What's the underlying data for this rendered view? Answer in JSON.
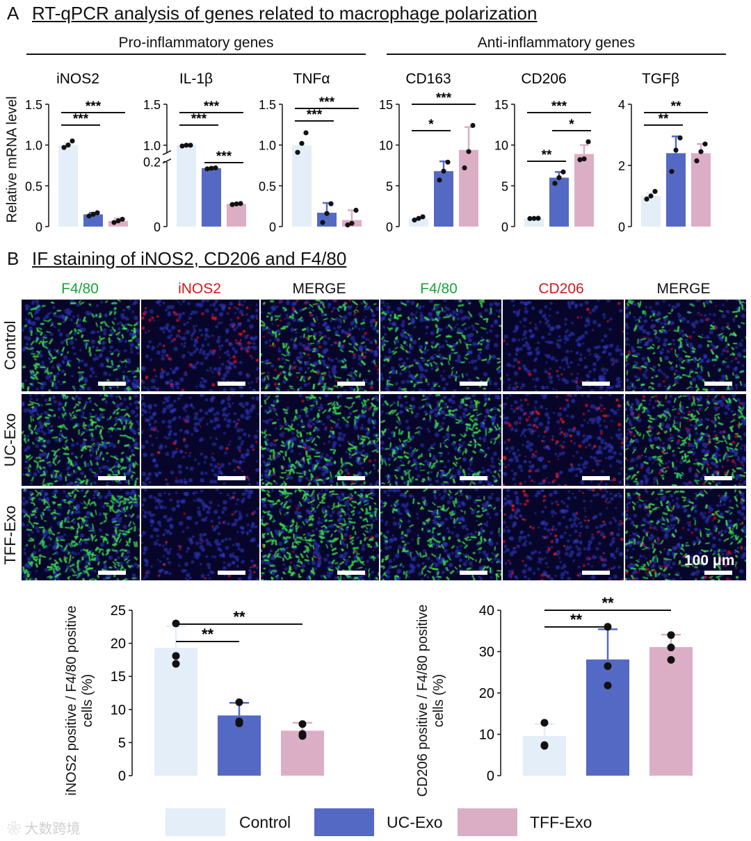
{
  "panel_a": {
    "letter": "A",
    "title": "RT-qPCR analysis of genes related to macrophage polarization",
    "group_left": "Pro-inflammatory genes",
    "group_right": "Anti-inflammatory genes",
    "ylabel": "Relative mRNA level"
  },
  "panel_b": {
    "letter": "B",
    "title": "IF staining of iNOS2, CD206 and F4/80",
    "col_labels": [
      "F4/80",
      "iNOS2",
      "MERGE",
      "F4/80",
      "CD206",
      "MERGE"
    ],
    "col_colors": [
      "#1aa33a",
      "#d01a1a",
      "#111111",
      "#1aa33a",
      "#d01a1a",
      "#111111"
    ],
    "row_labels": [
      "Control",
      "UC-Exo",
      "TFF-Exo"
    ],
    "scale_label": "100 μm"
  },
  "legend": {
    "items": [
      {
        "label": "Control",
        "color": "#e3eef9"
      },
      {
        "label": "UC-Exo",
        "color": "#5469c4"
      },
      {
        "label": "TFF-Exo",
        "color": "#dcaec6"
      }
    ]
  },
  "colors": {
    "control": "#e3eef9",
    "uc": "#5469c4",
    "tff": "#dcaec6"
  },
  "watermark": "大数跨境",
  "chart_data": [
    {
      "type": "bar",
      "title": "iNOS2",
      "categories": [
        "Control",
        "UC-Exo",
        "TFF-Exo"
      ],
      "values": [
        1.0,
        0.15,
        0.07
      ],
      "err": [
        0.03,
        0.02,
        0.03
      ],
      "points": [
        [
          0.97,
          1.0,
          1.05
        ],
        [
          0.13,
          0.15,
          0.17
        ],
        [
          0.05,
          0.07,
          0.09
        ]
      ],
      "ylim": [
        0,
        1.5
      ],
      "yticks": [
        "0",
        "0.5",
        "1.0",
        "1.5"
      ],
      "sig": [
        {
          "a": 0,
          "b": 1,
          "label": "***"
        },
        {
          "a": 0,
          "b": 2,
          "label": "***"
        }
      ]
    },
    {
      "type": "bar",
      "title": "IL-1β",
      "categories": [
        "Control",
        "UC-Exo",
        "TFF-Exo"
      ],
      "values": [
        1.0,
        0.18,
        0.07
      ],
      "points": [
        [
          0.99,
          1.0,
          1.0
        ],
        [
          0.178,
          0.18,
          0.181
        ],
        [
          0.068,
          0.07,
          0.071
        ]
      ],
      "ylim": [
        0,
        1.5
      ],
      "yticks": [
        "0",
        "0.2",
        "1.0",
        "1.5"
      ],
      "broken_axis": true,
      "sig": [
        {
          "a": 0,
          "b": 1,
          "label": "***"
        },
        {
          "a": 0,
          "b": 2,
          "label": "***"
        },
        {
          "a": 1,
          "b": 2,
          "label": "***"
        }
      ]
    },
    {
      "type": "bar",
      "title": "TNFα",
      "categories": [
        "Control",
        "UC-Exo",
        "TFF-Exo"
      ],
      "values": [
        1.0,
        0.17,
        0.08
      ],
      "err": [
        0.0,
        0.12,
        0.12
      ],
      "points": [
        [
          0.91,
          1.02,
          1.15
        ],
        [
          0.05,
          0.16,
          0.28
        ],
        [
          0.02,
          0.04,
          0.2
        ]
      ],
      "ylim": [
        0,
        1.5
      ],
      "yticks": [
        "0",
        "0.5",
        "1.0",
        "1.5"
      ],
      "sig": [
        {
          "a": 0,
          "b": 1,
          "label": "***"
        },
        {
          "a": 0,
          "b": 2,
          "label": "***"
        }
      ]
    },
    {
      "type": "bar",
      "title": "CD163",
      "categories": [
        "Control",
        "UC-Exo",
        "TFF-Exo"
      ],
      "values": [
        1.0,
        6.8,
        9.4
      ],
      "err": [
        0.1,
        1.2,
        2.8
      ],
      "points": [
        [
          0.8,
          1.0,
          1.2
        ],
        [
          5.7,
          6.8,
          7.9
        ],
        [
          7.2,
          9.2,
          12.4
        ]
      ],
      "ylim": [
        0,
        15
      ],
      "yticks": [
        "0",
        "5",
        "10",
        "15"
      ],
      "sig": [
        {
          "a": 0,
          "b": 1,
          "label": "*"
        },
        {
          "a": 0,
          "b": 2,
          "label": "***"
        }
      ]
    },
    {
      "type": "bar",
      "title": "CD206",
      "categories": [
        "Control",
        "UC-Exo",
        "TFF-Exo"
      ],
      "values": [
        1.0,
        6.0,
        8.9
      ],
      "err": [
        0.05,
        0.7,
        1.1
      ],
      "points": [
        [
          0.98,
          1.0,
          1.02
        ],
        [
          5.3,
          6.0,
          6.7
        ],
        [
          8.2,
          8.3,
          10.4
        ]
      ],
      "ylim": [
        0,
        15
      ],
      "yticks": [
        "0",
        "5",
        "10",
        "15"
      ],
      "sig": [
        {
          "a": 0,
          "b": 1,
          "label": "**"
        },
        {
          "a": 0,
          "b": 2,
          "label": "***"
        },
        {
          "a": 1,
          "b": 2,
          "label": "*"
        }
      ]
    },
    {
      "type": "bar",
      "title": "TGFβ",
      "categories": [
        "Control",
        "UC-Exo",
        "TFF-Exo"
      ],
      "values": [
        1.0,
        2.4,
        2.4
      ],
      "err": [
        0.1,
        0.55,
        0.3
      ],
      "points": [
        [
          0.9,
          1.0,
          1.15
        ],
        [
          1.8,
          2.5,
          2.9
        ],
        [
          2.15,
          2.45,
          2.7
        ]
      ],
      "ylim": [
        0,
        4
      ],
      "yticks": [
        "0",
        "2",
        "4"
      ],
      "sig": [
        {
          "a": 0,
          "b": 1,
          "label": "**"
        },
        {
          "a": 0,
          "b": 2,
          "label": "**"
        }
      ]
    },
    {
      "type": "bar",
      "title": "",
      "ylabel": "iNOS2 positive / F4/80 positive cells (%)",
      "categories": [
        "Control",
        "UC-Exo",
        "TFF-Exo"
      ],
      "values": [
        19.3,
        9.1,
        6.8
      ],
      "err": [
        3.3,
        1.9,
        1.2
      ],
      "points": [
        [
          16.9,
          18.1,
          23.0
        ],
        [
          7.9,
          8.2,
          11.1
        ],
        [
          6.0,
          6.3,
          7.8
        ]
      ],
      "ylim": [
        0,
        25
      ],
      "yticks": [
        "0",
        "5",
        "10",
        "15",
        "20",
        "25"
      ],
      "sig": [
        {
          "a": 0,
          "b": 1,
          "label": "**"
        },
        {
          "a": 0,
          "b": 2,
          "label": "**"
        }
      ]
    },
    {
      "type": "bar",
      "title": "",
      "ylabel": "CD206 positive / F4/80 positive cells (%)",
      "categories": [
        "Control",
        "UC-Exo",
        "TFF-Exo"
      ],
      "values": [
        9.6,
        28.1,
        31.1
      ],
      "err": [
        2.9,
        7.3,
        3.0
      ],
      "points": [
        [
          7.2,
          7.4,
          12.8
        ],
        [
          21.8,
          26.5,
          36.0
        ],
        [
          28.0,
          31.0,
          34.0
        ]
      ],
      "ylim": [
        0,
        40
      ],
      "yticks": [
        "0",
        "10",
        "20",
        "30",
        "40"
      ],
      "sig": [
        {
          "a": 0,
          "b": 1,
          "label": "**"
        },
        {
          "a": 0,
          "b": 2,
          "label": "**"
        }
      ]
    }
  ]
}
